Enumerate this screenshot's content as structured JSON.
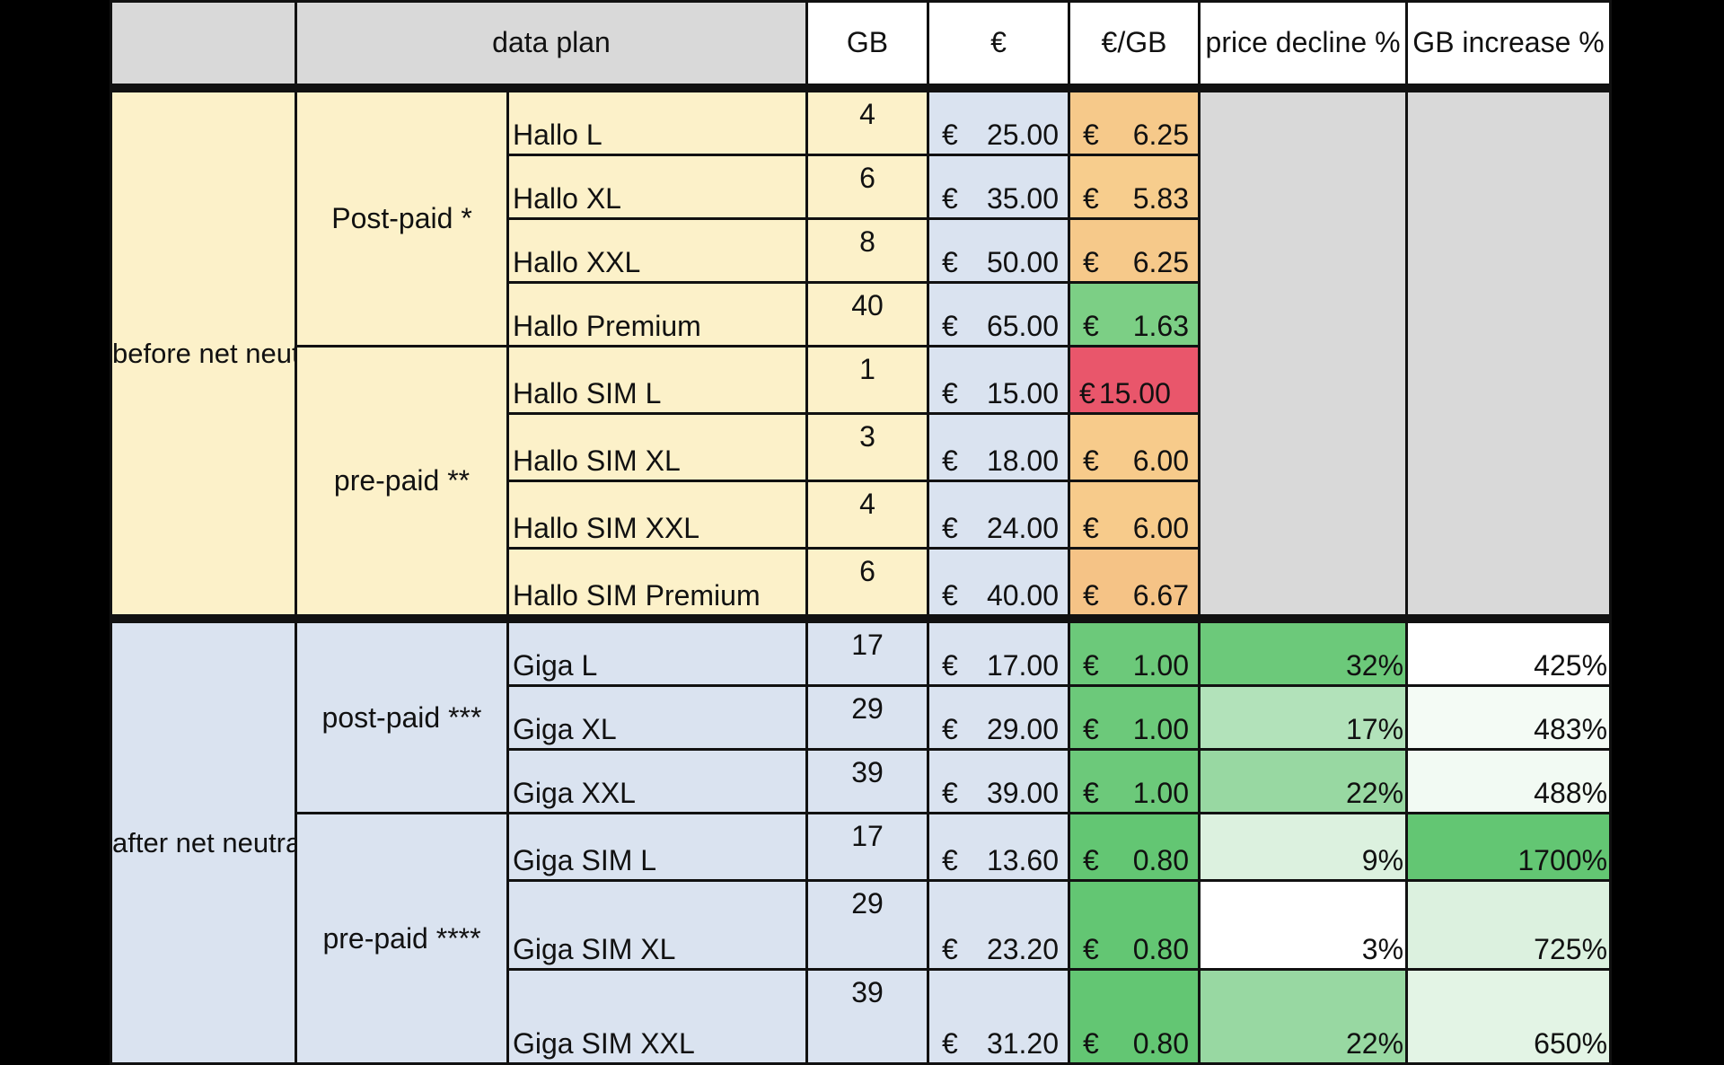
{
  "header": {
    "data_plan": "data plan",
    "gb": "GB",
    "eur": "€",
    "eur_per_gb": "€/GB",
    "price_decline": "price decline %",
    "gb_increase": "GB increase %"
  },
  "sections": [
    {
      "period": "before net neutrality intervention",
      "groups": [
        {
          "type": "Post-paid  *",
          "rows": [
            {
              "plan": "Hallo L",
              "gb": "4",
              "cur": "€",
              "price": "25.00",
              "cur_gb": "€",
              "per_gb": "6.25",
              "per_gb_color": "#f6c98a"
            },
            {
              "plan": "Hallo XL",
              "gb": "6",
              "cur": "€",
              "price": "35.00",
              "cur_gb": "€",
              "per_gb": "5.83",
              "per_gb_color": "#f7cd8d"
            },
            {
              "plan": "Hallo XXL",
              "gb": "8",
              "cur": "€",
              "price": "50.00",
              "cur_gb": "€",
              "per_gb": "6.25",
              "per_gb_color": "#f6c98a"
            },
            {
              "plan": "Hallo Premium",
              "gb": "40",
              "cur": "€",
              "price": "65.00",
              "cur_gb": "€",
              "per_gb": "1.63",
              "per_gb_color": "#7ccf85"
            }
          ]
        },
        {
          "type": "pre-paid **",
          "rows": [
            {
              "plan": "Hallo SIM L",
              "gb": "1",
              "cur": "€",
              "price": "15.00",
              "cur_gb": "€",
              "per_gb": "15.00",
              "per_gb_color": "#e9566b"
            },
            {
              "plan": "Hallo SIM XL",
              "gb": "3",
              "cur": "€",
              "price": "18.00",
              "cur_gb": "€",
              "per_gb": "6.00",
              "per_gb_color": "#f7cb8b"
            },
            {
              "plan": "Hallo SIM XXL",
              "gb": "4",
              "cur": "€",
              "price": "24.00",
              "cur_gb": "€",
              "per_gb": "6.00",
              "per_gb_color": "#f7cb8b"
            },
            {
              "plan": "Hallo SIM Premium",
              "gb": "6",
              "cur": "€",
              "price": "40.00",
              "cur_gb": "€",
              "per_gb": "6.67",
              "per_gb_color": "#f5c386"
            }
          ]
        }
      ]
    },
    {
      "period": "after net neutrality intervention",
      "groups": [
        {
          "type": "post-paid ***",
          "rows": [
            {
              "plan": "Giga L",
              "gb": "17",
              "cur": "€",
              "price": "17.00",
              "cur_gb": "€",
              "per_gb": "1.00",
              "per_gb_color": "#6cc97a",
              "decline": "32%",
              "decline_color": "#6cc97a",
              "increase": "425%",
              "increase_color": "#ffffff"
            },
            {
              "plan": "Giga XL",
              "gb": "29",
              "cur": "€",
              "price": "29.00",
              "cur_gb": "€",
              "per_gb": "1.00",
              "per_gb_color": "#6cc97a",
              "decline": "17%",
              "decline_color": "#b2e2ba",
              "increase": "483%",
              "increase_color": "#f4fbf5"
            },
            {
              "plan": "Giga XXL",
              "gb": "39",
              "cur": "€",
              "price": "39.00",
              "cur_gb": "€",
              "per_gb": "1.00",
              "per_gb_color": "#6cc97a",
              "decline": "22%",
              "decline_color": "#98d8a2",
              "increase": "488%",
              "increase_color": "#f2faf3"
            }
          ]
        },
        {
          "type": "pre-paid ****",
          "rows": [
            {
              "plan": "Giga SIM L",
              "gb": "17",
              "cur": "€",
              "price": "13.60",
              "cur_gb": "€",
              "per_gb": "0.80",
              "per_gb_color": "#63c673",
              "decline": "9%",
              "decline_color": "#dcf1df",
              "increase": "1700%",
              "increase_color": "#63c673"
            },
            {
              "plan": "Giga SIM XL",
              "gb": "29",
              "cur": "€",
              "price": "23.20",
              "cur_gb": "€",
              "per_gb": "0.80",
              "per_gb_color": "#63c673",
              "decline": "3%",
              "decline_color": "#ffffff",
              "increase": "725%",
              "increase_color": "#dcf1df"
            },
            {
              "plan": "Giga SIM XXL",
              "gb": "39",
              "cur": "€",
              "price": "31.20",
              "cur_gb": "€",
              "per_gb": "0.80",
              "per_gb_color": "#63c673",
              "decline": "22%",
              "decline_color": "#98d8a2",
              "increase": "650%",
              "increase_color": "#e3f4e5"
            }
          ]
        }
      ]
    }
  ]
}
